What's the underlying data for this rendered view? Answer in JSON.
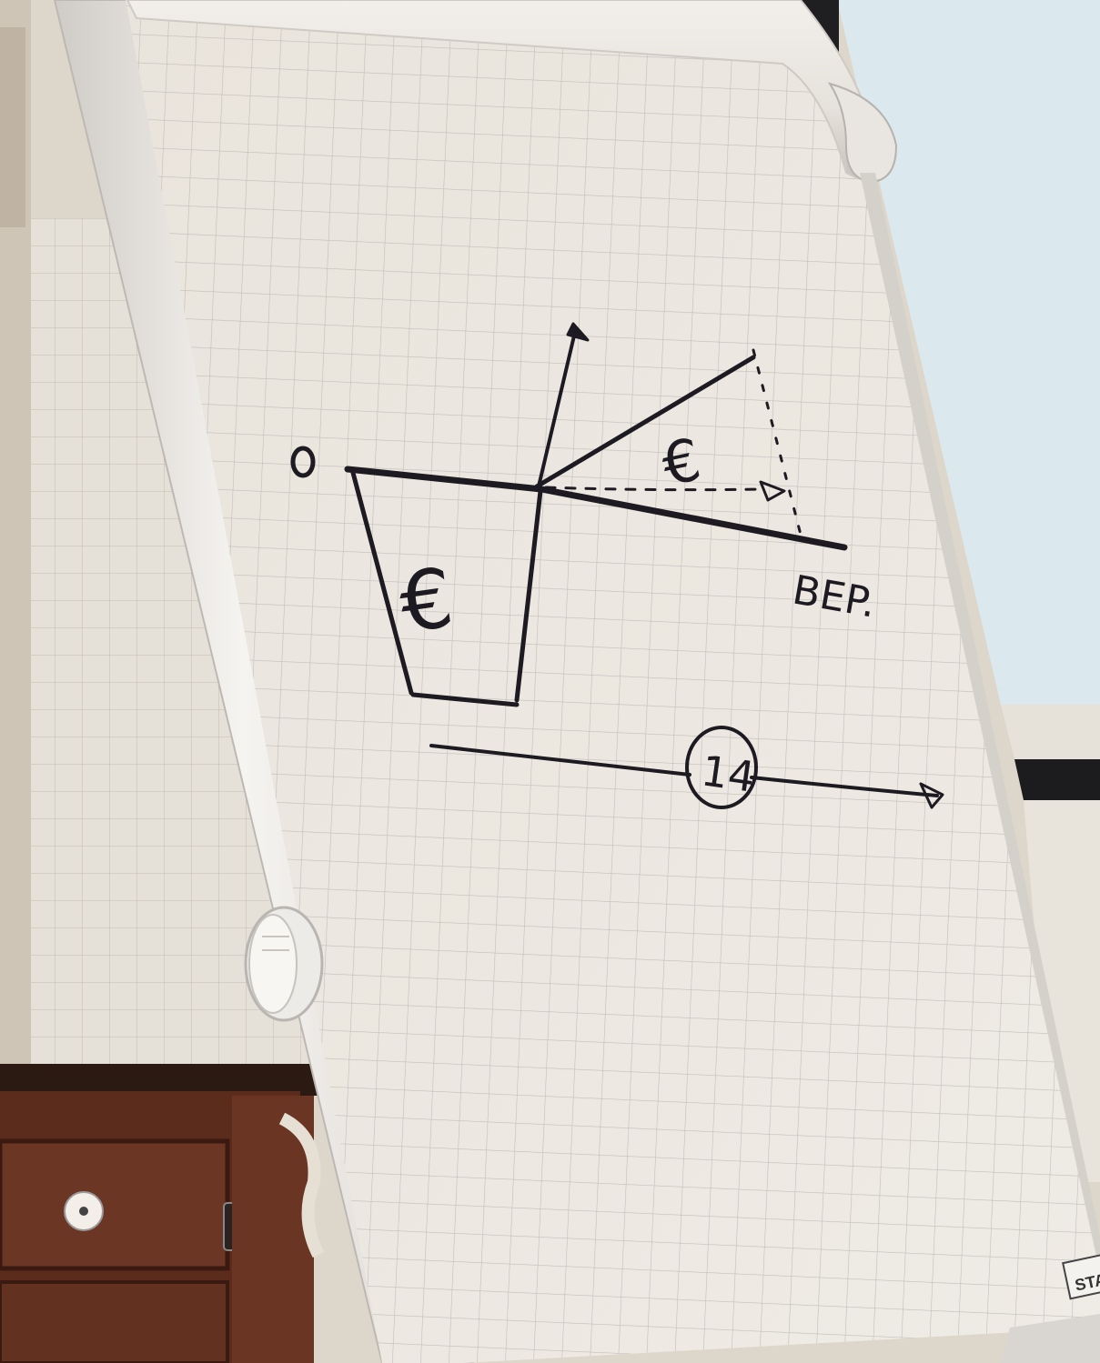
{
  "scene": {
    "description_free": true,
    "colors": {
      "wall": "#ddd6cb",
      "window_sky": "#dde9ee",
      "paper": "#ece7e0",
      "grid": "#b8b6b4",
      "frame": "#f1efec",
      "ink": "#1d1a22",
      "cabinet": "#5a2d1c"
    }
  },
  "drawing": {
    "origin_mark": "0",
    "euro_left": "€",
    "euro_right": "€",
    "label_right": "BEP.",
    "circle_label": "14"
  },
  "brand_tag": {
    "text": "STAR"
  }
}
